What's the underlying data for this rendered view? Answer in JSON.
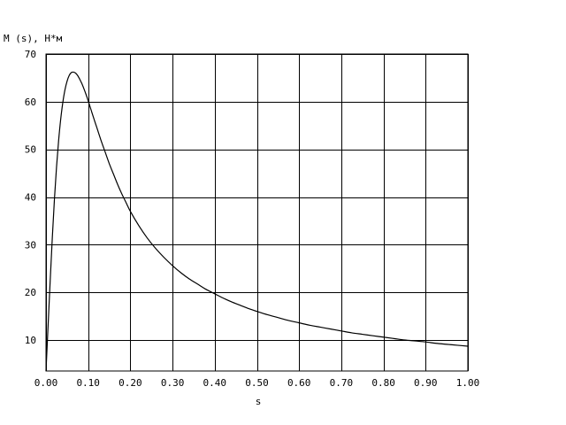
{
  "chart_data": {
    "type": "line",
    "title": "",
    "xlabel": "s",
    "ylabel": "M (s), Н*м",
    "xlim": [
      0.0,
      1.0
    ],
    "ylim": [
      3.5,
      70
    ],
    "grid": true,
    "colors": {
      "background": "#ffffff",
      "line": "#000000",
      "grid": "#000000"
    },
    "x_ticks": [
      0.0,
      0.1,
      0.2,
      0.3,
      0.4,
      0.5,
      0.6,
      0.7,
      0.8,
      0.9,
      1.0
    ],
    "x_tick_labels": [
      "0.00",
      "0.10",
      "0.20",
      "0.30",
      "0.40",
      "0.50",
      "0.60",
      "0.70",
      "0.80",
      "0.90",
      "1.00"
    ],
    "y_ticks": [
      10,
      20,
      30,
      40,
      50,
      60,
      70
    ],
    "y_tick_labels": [
      "10",
      "20",
      "30",
      "40",
      "50",
      "60",
      "70"
    ],
    "series": [
      {
        "name": "",
        "x": [
          0.0,
          0.005,
          0.01,
          0.015,
          0.02,
          0.025,
          0.03,
          0.035,
          0.04,
          0.045,
          0.05,
          0.055,
          0.06,
          0.065,
          0.07,
          0.075,
          0.08,
          0.085,
          0.09,
          0.095,
          0.1,
          0.11,
          0.12,
          0.13,
          0.14,
          0.15,
          0.16,
          0.17,
          0.18,
          0.19,
          0.2,
          0.22,
          0.24,
          0.26,
          0.28,
          0.3,
          0.32,
          0.34,
          0.36,
          0.38,
          0.4,
          0.42,
          0.44,
          0.46,
          0.48,
          0.5,
          0.525,
          0.55,
          0.575,
          0.6,
          0.625,
          0.65,
          0.675,
          0.7,
          0.725,
          0.75,
          0.775,
          0.8,
          0.825,
          0.85,
          0.875,
          0.9,
          0.925,
          0.95,
          0.975,
          1.0
        ],
        "y": [
          3.5,
          13.0,
          22.5,
          31.5,
          39.5,
          46.3,
          51.9,
          56.4,
          59.9,
          62.5,
          64.3,
          65.5,
          66.1,
          66.2,
          66.0,
          65.5,
          64.7,
          63.8,
          62.7,
          61.5,
          60.2,
          57.4,
          54.7,
          52.0,
          49.5,
          47.0,
          44.8,
          42.6,
          40.6,
          38.8,
          37.0,
          34.0,
          31.4,
          29.2,
          27.3,
          25.6,
          24.1,
          22.8,
          21.7,
          20.6,
          19.7,
          18.8,
          18.0,
          17.3,
          16.6,
          16.0,
          15.3,
          14.7,
          14.1,
          13.6,
          13.1,
          12.7,
          12.3,
          11.9,
          11.5,
          11.2,
          10.9,
          10.6,
          10.3,
          10.0,
          9.8,
          9.6,
          9.3,
          9.1,
          8.9,
          8.7
        ]
      }
    ]
  }
}
